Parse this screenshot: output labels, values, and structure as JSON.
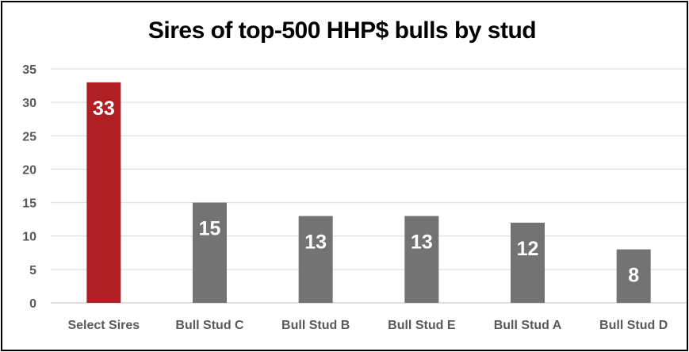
{
  "chart_data": {
    "type": "bar",
    "title": "Sires of top-500 HHP$ bulls by stud",
    "xlabel": "",
    "ylabel": "",
    "categories": [
      "Select Sires",
      "Bull Stud C",
      "Bull Stud B",
      "Bull Stud E",
      "Bull Stud A",
      "Bull Stud D"
    ],
    "values": [
      33,
      15,
      13,
      13,
      12,
      8
    ],
    "data_labels": [
      "33",
      "15",
      "13",
      "13",
      "12",
      "8"
    ],
    "ylim": [
      0,
      35
    ],
    "yticks": [
      0,
      5,
      10,
      15,
      20,
      25,
      30,
      35
    ],
    "grid": true,
    "legend": "none",
    "colors": {
      "highlight": "#B01F24",
      "default": "#737373",
      "gridline": "#D9D9D9",
      "axis": "#BFBFBF"
    },
    "highlight_index": 0
  }
}
